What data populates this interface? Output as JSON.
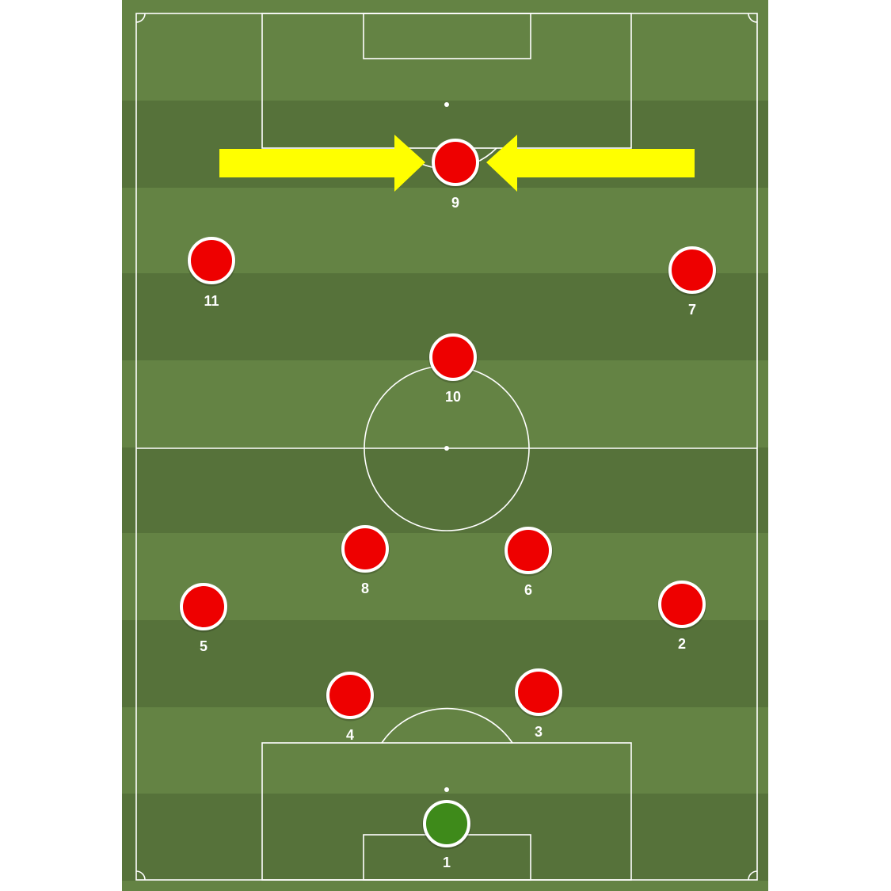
{
  "colors": {
    "stripe_light": "#648344",
    "stripe_dark": "#56723a",
    "line": "#ffffff",
    "outfield_player": "#ee0000",
    "goalkeeper": "#3e8a1a",
    "arrow": "#ffff00"
  },
  "players": [
    {
      "id": "goalkeeper",
      "number": "1",
      "role": "goalkeeper"
    },
    {
      "id": "right-back",
      "number": "2",
      "role": "outfield"
    },
    {
      "id": "right-centre-back",
      "number": "3",
      "role": "outfield"
    },
    {
      "id": "left-centre-back",
      "number": "4",
      "role": "outfield"
    },
    {
      "id": "left-back",
      "number": "5",
      "role": "outfield"
    },
    {
      "id": "right-midfielder",
      "number": "6",
      "role": "outfield"
    },
    {
      "id": "right-winger",
      "number": "7",
      "role": "outfield"
    },
    {
      "id": "left-midfielder",
      "number": "8",
      "role": "outfield"
    },
    {
      "id": "striker",
      "number": "9",
      "role": "outfield"
    },
    {
      "id": "attacking-midfielder",
      "number": "10",
      "role": "outfield"
    },
    {
      "id": "left-winger",
      "number": "11",
      "role": "outfield"
    }
  ],
  "arrows": [
    {
      "id": "left-arrow",
      "direction": "right",
      "target": "striker"
    },
    {
      "id": "right-arrow",
      "direction": "left",
      "target": "striker"
    }
  ]
}
